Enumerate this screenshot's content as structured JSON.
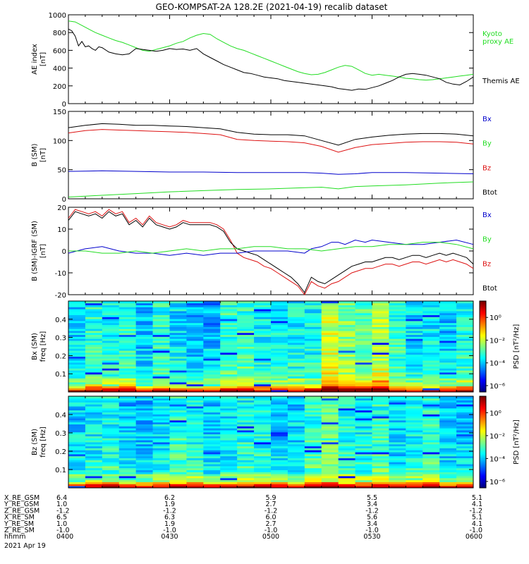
{
  "title": "GEO-KOMPSAT-2A 128.2E (2021-04-19) recalib dataset",
  "colors": {
    "black": "#000000",
    "blue": "#0000cc",
    "green": "#22dd22",
    "red": "#dd1111"
  },
  "chart_data": [
    {
      "type": "line",
      "ylabel": [
        "AE index",
        "[nT]"
      ],
      "ylim": [
        0,
        1000
      ],
      "yticks": [
        0,
        200,
        400,
        600,
        800,
        1000
      ],
      "legend": [
        {
          "text": [
            "Kyoto",
            "proxy AE"
          ],
          "color": "#22dd22"
        },
        {
          "text": [
            "Themis AE"
          ],
          "color": "#000000"
        }
      ],
      "series": [
        {
          "name": "Kyoto proxy AE",
          "color": "#22dd22",
          "x": [
            0,
            2,
            4,
            6,
            8,
            10,
            12,
            14,
            16,
            18,
            20,
            22,
            24,
            26,
            28,
            30,
            32,
            34,
            36,
            38,
            40,
            42,
            44,
            46,
            48,
            50,
            52,
            54,
            56,
            58,
            60,
            62,
            64,
            66,
            68,
            70,
            72,
            74,
            76,
            78,
            80,
            82,
            84,
            86,
            88,
            90,
            92,
            94,
            96,
            98,
            100,
            102,
            104,
            106,
            108,
            110,
            112,
            114,
            116,
            118,
            120
          ],
          "values": [
            930,
            920,
            880,
            840,
            800,
            770,
            740,
            710,
            690,
            660,
            630,
            600,
            590,
            610,
            630,
            650,
            680,
            700,
            740,
            770,
            790,
            780,
            730,
            690,
            650,
            620,
            600,
            570,
            540,
            510,
            480,
            450,
            420,
            390,
            360,
            340,
            325,
            330,
            350,
            380,
            410,
            430,
            420,
            380,
            340,
            320,
            330,
            320,
            310,
            300,
            285,
            280,
            270,
            265,
            270,
            280,
            290,
            300,
            310,
            320,
            330
          ]
        },
        {
          "name": "Themis AE",
          "color": "#000000",
          "x": [
            0,
            1,
            2,
            3,
            4,
            5,
            6,
            7,
            8,
            9,
            10,
            12,
            14,
            16,
            18,
            20,
            22,
            24,
            26,
            28,
            30,
            32,
            34,
            36,
            38,
            40,
            42,
            44,
            46,
            48,
            50,
            52,
            54,
            56,
            58,
            60,
            62,
            64,
            66,
            68,
            70,
            72,
            74,
            76,
            78,
            80,
            82,
            84,
            86,
            88,
            90,
            92,
            94,
            96,
            98,
            100,
            102,
            104,
            106,
            108,
            110,
            112,
            114,
            116,
            118,
            120
          ],
          "values": [
            840,
            820,
            760,
            650,
            700,
            640,
            650,
            620,
            600,
            640,
            630,
            580,
            560,
            550,
            560,
            620,
            610,
            600,
            590,
            600,
            620,
            610,
            615,
            600,
            620,
            560,
            520,
            480,
            440,
            410,
            380,
            350,
            340,
            320,
            300,
            290,
            280,
            260,
            250,
            240,
            230,
            220,
            210,
            200,
            190,
            170,
            160,
            150,
            165,
            160,
            180,
            200,
            230,
            260,
            300,
            330,
            340,
            330,
            320,
            300,
            280,
            240,
            220,
            210,
            250,
            300
          ]
        }
      ]
    },
    {
      "type": "line",
      "ylabel": [
        "B (SM)",
        "[nT]"
      ],
      "ylim": [
        0,
        150
      ],
      "yticks": [
        0,
        50,
        100,
        150
      ],
      "legend": [
        {
          "text": [
            "Bx"
          ],
          "color": "#0000cc"
        },
        {
          "text": [
            "By"
          ],
          "color": "#22dd22"
        },
        {
          "text": [
            "Bz"
          ],
          "color": "#dd1111"
        },
        {
          "text": [
            "Btot"
          ],
          "color": "#000000"
        }
      ],
      "series": [
        {
          "color": "#000000",
          "x": [
            0,
            5,
            10,
            15,
            20,
            25,
            30,
            35,
            40,
            45,
            50,
            55,
            60,
            65,
            70,
            75,
            80,
            85,
            90,
            95,
            100,
            105,
            110,
            115,
            120
          ],
          "values": [
            122,
            126,
            129,
            128,
            126,
            126,
            125,
            124,
            122,
            120,
            114,
            111,
            110,
            110,
            108,
            100,
            92,
            102,
            106,
            109,
            111,
            112,
            112,
            111,
            108
          ]
        },
        {
          "color": "#dd1111",
          "x": [
            0,
            5,
            10,
            15,
            20,
            25,
            30,
            35,
            40,
            45,
            50,
            55,
            60,
            65,
            70,
            75,
            80,
            85,
            90,
            95,
            100,
            105,
            110,
            115,
            120
          ],
          "values": [
            113,
            117,
            119,
            118,
            117,
            116,
            115,
            114,
            112,
            110,
            102,
            100,
            99,
            98,
            96,
            90,
            80,
            88,
            93,
            95,
            97,
            98,
            98,
            97,
            94
          ]
        },
        {
          "color": "#0000cc",
          "x": [
            0,
            10,
            20,
            30,
            40,
            50,
            60,
            70,
            75,
            80,
            85,
            90,
            100,
            110,
            120
          ],
          "values": [
            47,
            48,
            47,
            46,
            46,
            45,
            45,
            45,
            44,
            42,
            43,
            45,
            45,
            44,
            43
          ]
        },
        {
          "color": "#22dd22",
          "x": [
            0,
            10,
            20,
            30,
            40,
            50,
            60,
            70,
            75,
            80,
            85,
            90,
            100,
            110,
            120
          ],
          "values": [
            3,
            6,
            9,
            12,
            14,
            16,
            17,
            19,
            20,
            17,
            21,
            22,
            24,
            27,
            29
          ]
        }
      ]
    },
    {
      "type": "line",
      "ylabel": [
        "B (SM)-IGRF (SM)",
        "[nT]"
      ],
      "ylim": [
        -20,
        20
      ],
      "yticks": [
        -20,
        -10,
        0,
        10,
        20
      ],
      "legend": [
        {
          "text": [
            "Bx"
          ],
          "color": "#0000cc"
        },
        {
          "text": [
            "By"
          ],
          "color": "#22dd22"
        },
        {
          "text": [
            "Bz"
          ],
          "color": "#dd1111"
        },
        {
          "text": [
            "Btot"
          ],
          "color": "#000000"
        }
      ],
      "series": [
        {
          "color": "#dd1111",
          "x": [
            0,
            2,
            4,
            6,
            8,
            10,
            12,
            14,
            16,
            18,
            20,
            22,
            24,
            26,
            28,
            30,
            32,
            34,
            36,
            38,
            40,
            42,
            44,
            46,
            48,
            50,
            52,
            54,
            56,
            58,
            60,
            62,
            64,
            66,
            68,
            70,
            72,
            74,
            76,
            78,
            80,
            82,
            84,
            86,
            88,
            90,
            92,
            94,
            96,
            98,
            100,
            102,
            104,
            106,
            108,
            110,
            112,
            114,
            116,
            118,
            120
          ],
          "values": [
            15,
            19,
            18,
            17,
            18,
            16,
            19,
            17,
            18,
            13,
            15,
            12,
            16,
            13,
            12,
            11,
            12,
            14,
            13,
            13,
            13,
            13,
            12,
            10,
            5,
            -1,
            -3,
            -4,
            -5,
            -7,
            -8,
            -10,
            -12,
            -14,
            -16,
            -20,
            -14,
            -16,
            -17,
            -15,
            -14,
            -12,
            -10,
            -9,
            -8,
            -8,
            -7,
            -6,
            -6,
            -7,
            -6,
            -5,
            -5,
            -6,
            -5,
            -4,
            -5,
            -4,
            -5,
            -6,
            -8
          ]
        },
        {
          "color": "#000000",
          "x": [
            0,
            2,
            4,
            6,
            8,
            10,
            12,
            14,
            16,
            18,
            20,
            22,
            24,
            26,
            28,
            30,
            32,
            34,
            36,
            38,
            40,
            42,
            44,
            46,
            48,
            50,
            52,
            54,
            56,
            58,
            60,
            62,
            64,
            66,
            68,
            70,
            72,
            74,
            76,
            78,
            80,
            82,
            84,
            86,
            88,
            90,
            92,
            94,
            96,
            98,
            100,
            102,
            104,
            106,
            108,
            110,
            112,
            114,
            116,
            118,
            120
          ],
          "values": [
            14,
            18,
            17,
            16,
            17,
            15,
            18,
            16,
            17,
            12,
            14,
            11,
            15,
            12,
            11,
            10,
            11,
            13,
            12,
            12,
            12,
            12,
            11,
            9,
            4,
            1,
            0,
            -1,
            -2,
            -4,
            -6,
            -8,
            -10,
            -12,
            -15,
            -19,
            -12,
            -14,
            -15,
            -13,
            -11,
            -9,
            -7,
            -6,
            -5,
            -5,
            -4,
            -3,
            -3,
            -4,
            -3,
            -2,
            -2,
            -3,
            -2,
            -1,
            -2,
            -1,
            -2,
            -3,
            -6
          ]
        },
        {
          "color": "#0000cc",
          "x": [
            0,
            5,
            10,
            15,
            20,
            25,
            30,
            35,
            40,
            45,
            50,
            55,
            60,
            65,
            70,
            72,
            75,
            78,
            80,
            82,
            85,
            88,
            90,
            95,
            100,
            105,
            110,
            115,
            120
          ],
          "values": [
            -1,
            1,
            2,
            0,
            -1,
            -1,
            -2,
            -1,
            -2,
            -1,
            -1,
            0,
            0,
            0,
            -1,
            1,
            2,
            4,
            4,
            3,
            5,
            4,
            5,
            4,
            3,
            3,
            4,
            5,
            3
          ]
        },
        {
          "color": "#22dd22",
          "x": [
            0,
            5,
            10,
            15,
            20,
            25,
            30,
            35,
            40,
            45,
            50,
            55,
            60,
            65,
            70,
            75,
            80,
            85,
            90,
            95,
            100,
            105,
            110,
            115,
            120
          ],
          "values": [
            0,
            0,
            -1,
            -1,
            0,
            -1,
            0,
            1,
            0,
            1,
            1,
            2,
            2,
            1,
            1,
            0,
            1,
            2,
            2,
            3,
            3,
            4,
            4,
            3,
            1
          ]
        }
      ]
    },
    {
      "type": "heatmap",
      "ylabel": [
        "Bx (SM)",
        "freq [Hz]"
      ],
      "ylim": [
        0,
        0.5
      ],
      "yticks": [
        0.1,
        0.2,
        0.3,
        0.4
      ],
      "colorbar": {
        "label": "PSD [nT²/Hz]",
        "ticks": [
          "10⁰",
          "10⁻²",
          "10⁻⁴",
          "10⁻⁶"
        ]
      },
      "seed": 7
    },
    {
      "type": "heatmap",
      "ylabel": [
        "Bz (SM)",
        "freq [Hz]"
      ],
      "ylim": [
        0,
        0.5
      ],
      "yticks": [
        0.1,
        0.2,
        0.3,
        0.4
      ],
      "colorbar": {
        "label": "PSD [nT²/Hz]",
        "ticks": [
          "10⁰",
          "10⁻²",
          "10⁻⁴",
          "10⁻⁶"
        ]
      },
      "seed": 13
    }
  ],
  "ephemeris": {
    "rows": [
      {
        "label": "X_RE_GSM",
        "values": [
          "6.4",
          "6.2",
          "5.9",
          "5.5",
          "5.1"
        ]
      },
      {
        "label": "Y_RE_GSM",
        "values": [
          "1.0",
          "1.9",
          "2.7",
          "3.4",
          "4.1"
        ]
      },
      {
        "label": "Z_RE_GSM",
        "values": [
          "-1.2",
          "-1.2",
          "-1.2",
          "-1.2",
          "-1.2"
        ]
      },
      {
        "label": "X_RE_SM",
        "values": [
          "6.5",
          "6.3",
          "6.0",
          "5.6",
          "5.1"
        ]
      },
      {
        "label": "Y_RE_SM",
        "values": [
          "1.0",
          "1.9",
          "2.7",
          "3.4",
          "4.1"
        ]
      },
      {
        "label": "Z_RE_SM",
        "values": [
          "-1.0",
          "-1.0",
          "-1.0",
          "-1.0",
          "-1.0"
        ]
      },
      {
        "label": "hhmm",
        "values": [
          "0400",
          "0430",
          "0500",
          "0530",
          "0600"
        ]
      }
    ],
    "date": "2021 Apr 19"
  }
}
